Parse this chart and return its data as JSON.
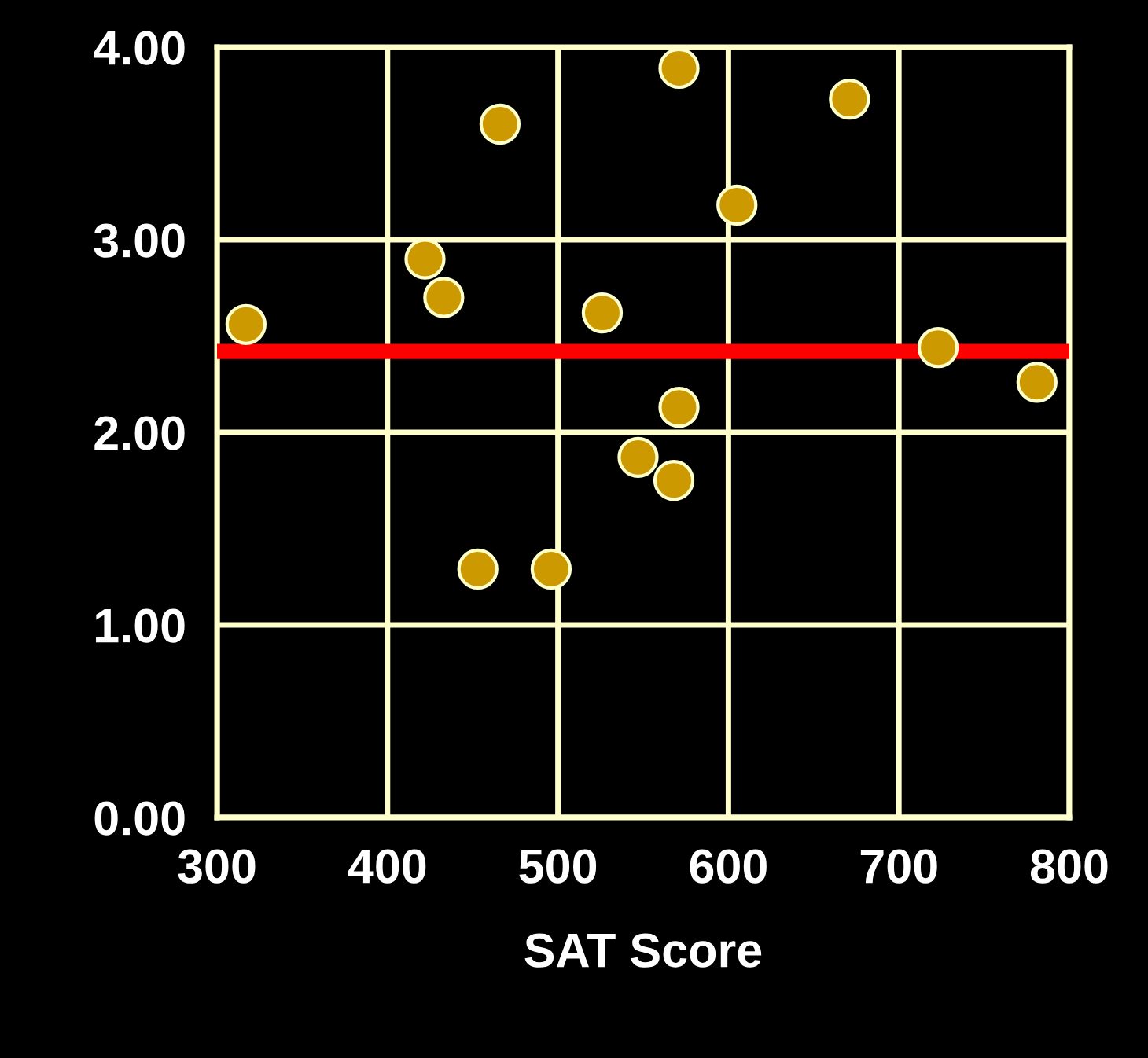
{
  "chart_data": {
    "type": "scatter",
    "xlabel": "SAT Score",
    "x": [
      317,
      422,
      433,
      466,
      453,
      496,
      526,
      547,
      571,
      571,
      568,
      605,
      671,
      723,
      781
    ],
    "series": [
      {
        "color": "#cc9900",
        "values": [
          2.56,
          2.9,
          2.7,
          3.6,
          1.29,
          1.29,
          2.62,
          1.87,
          3.89,
          2.13,
          1.75,
          3.18,
          3.73,
          2.44,
          2.26
        ]
      }
    ],
    "marker": "circle",
    "xlim": [
      300,
      800
    ],
    "xticks": [
      300,
      400,
      500,
      600,
      700,
      800
    ],
    "ylim": [
      0,
      4
    ],
    "yticks": [
      {
        "value": 0,
        "label": "0.00"
      },
      {
        "value": 1,
        "label": "1.00"
      },
      {
        "value": 2,
        "label": "2.00"
      },
      {
        "value": 3,
        "label": "3.00"
      },
      {
        "value": 4,
        "label": "4.00"
      }
    ],
    "grid": true,
    "ref_lines": [
      {
        "axis": "y",
        "value": 2.42,
        "color": "#ff0000",
        "line_style": "solid"
      }
    ]
  }
}
